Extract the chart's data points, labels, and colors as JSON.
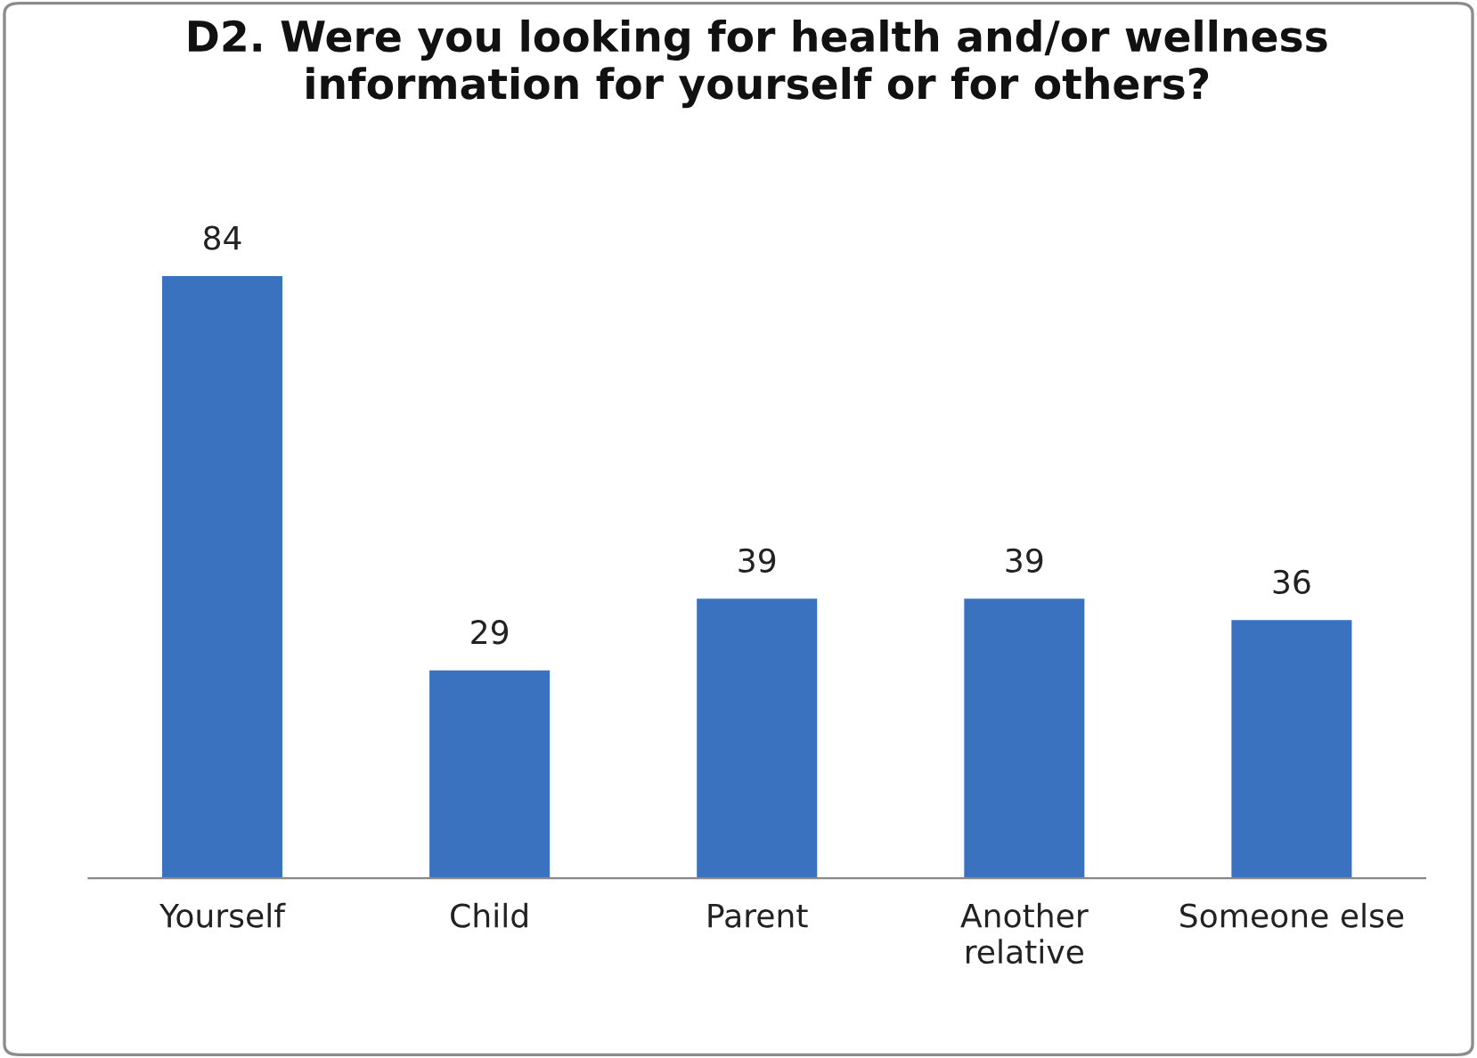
{
  "chart_data": {
    "type": "bar",
    "title": "D2. Were you looking for health and/or wellness\ninformation for yourself or for others?",
    "categories": [
      "Yourself",
      "Child",
      "Parent",
      "Another\nrelative",
      "Someone else"
    ],
    "values": [
      84,
      29,
      39,
      39,
      36
    ],
    "color": "#3a72c0",
    "data_labels": true,
    "grid": false,
    "legend": false
  }
}
